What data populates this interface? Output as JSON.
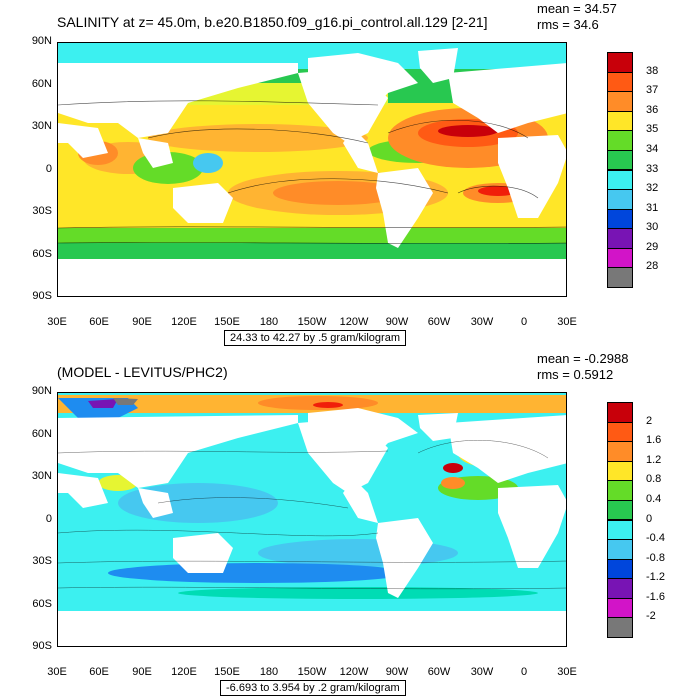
{
  "panels": [
    {
      "title": "SALINITY at z=  45.0m, b.e20.B1850.f09_g16.pi_control.all.129 [2-21]",
      "mean": "mean = 34.57",
      "rms": "rms = 34.6",
      "range": "24.33 to 42.27 by .5 gram/kilogram",
      "colorbar_labels": [
        "38",
        "37",
        "36",
        "35",
        "34",
        "33",
        "32",
        "31",
        "30",
        "29",
        "28"
      ],
      "colorbar_colors": [
        "#c8000a",
        "#f01e0a",
        "#ff5a14",
        "#ff8c28",
        "#ffb432",
        "#ffe628",
        "#e6f532",
        "#64dc28",
        "#28c850",
        "#00dcb4",
        "#3cf0f0",
        "#46c8f0",
        "#1e8cf0",
        "#0046dc",
        "#1e14c8",
        "#7814b4",
        "#d214c8",
        "#c8c8c8",
        "#787878"
      ]
    },
    {
      "title": "(MODEL - LEVITUS/PHC2)",
      "mean": "mean = -0.2988",
      "rms": "rms = 0.5912",
      "range": "-6.693 to 3.954 by .2 gram/kilogram",
      "colorbar_labels": [
        "2",
        "1.6",
        "1.2",
        "0.8",
        "0.4",
        "0",
        "-0.4",
        "-0.8",
        "-1.2",
        "-1.6",
        "-2"
      ],
      "colorbar_colors": [
        "#c8000a",
        "#f01e0a",
        "#ff5a14",
        "#ff8c28",
        "#ffb432",
        "#ffe628",
        "#e6f532",
        "#64dc28",
        "#28c850",
        "#00dcb4",
        "#3cf0f0",
        "#46c8f0",
        "#1e8cf0",
        "#0046dc",
        "#1e14c8",
        "#7814b4",
        "#d214c8",
        "#c8c8c8",
        "#787878"
      ]
    }
  ],
  "axes": {
    "y_ticks": [
      "90N",
      "60N",
      "30N",
      "0",
      "30S",
      "60S",
      "90S"
    ],
    "x_ticks": [
      "30E",
      "60E",
      "90E",
      "120E",
      "150E",
      "180",
      "150W",
      "120W",
      "90W",
      "60W",
      "30W",
      "0",
      "30E"
    ]
  }
}
